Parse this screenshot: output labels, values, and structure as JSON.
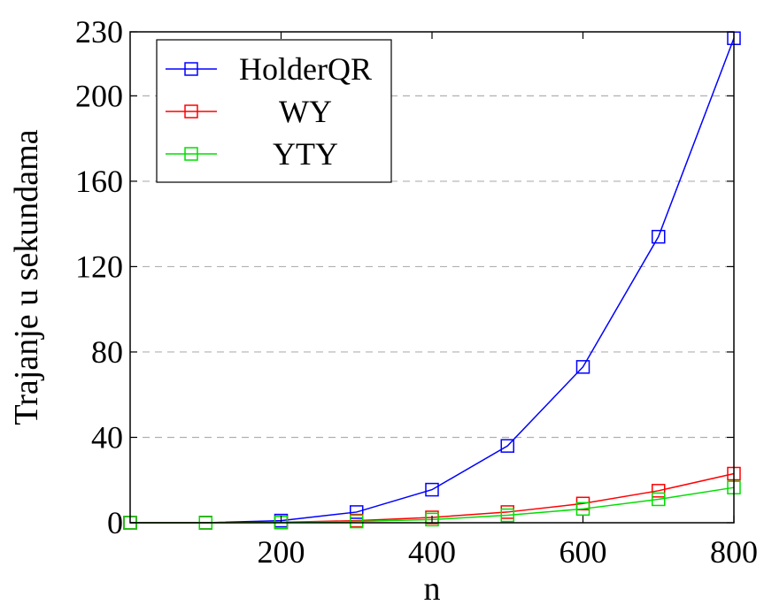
{
  "chart_data": {
    "type": "line",
    "title": "",
    "xlabel": "n",
    "ylabel": "Trajanje u sekundama",
    "xlim": [
      0,
      800
    ],
    "ylim": [
      0,
      230
    ],
    "xticks": [
      200,
      400,
      600,
      800
    ],
    "yticks": [
      0,
      40,
      80,
      120,
      160,
      200,
      230
    ],
    "x_tick_labels": [
      "200",
      "400",
      "600",
      "800"
    ],
    "y_tick_labels": [
      "0",
      "40",
      "80",
      "120",
      "160",
      "200",
      "230"
    ],
    "grid": "horizontal-dashed",
    "legend_position": "top-left",
    "x": [
      0,
      100,
      200,
      300,
      400,
      500,
      600,
      700,
      800
    ],
    "series": [
      {
        "name": "HolderQR",
        "color": "#0000ff",
        "marker": "square",
        "values": [
          0,
          0,
          1,
          5,
          15.5,
          36,
          73,
          134,
          227
        ]
      },
      {
        "name": "WY",
        "color": "#ff0000",
        "marker": "square",
        "values": [
          0,
          0,
          0.2,
          1,
          2.5,
          5,
          9,
          15,
          23
        ]
      },
      {
        "name": "YTY",
        "color": "#00dd00",
        "marker": "square",
        "values": [
          0,
          0,
          0.1,
          0.6,
          1.5,
          3.5,
          6.5,
          11,
          16.5
        ]
      }
    ]
  }
}
